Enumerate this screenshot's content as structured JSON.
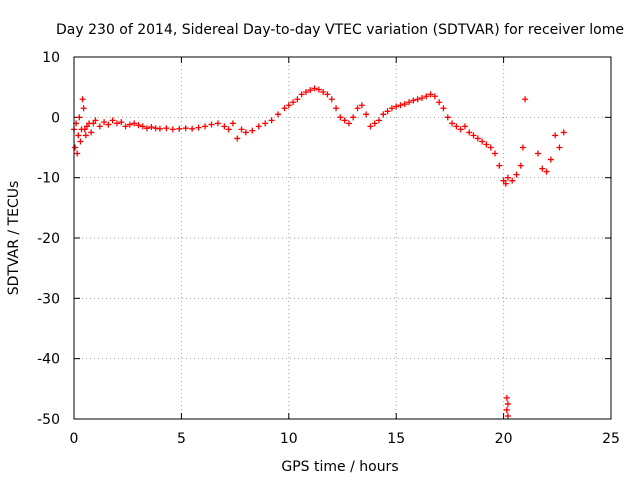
{
  "chart_data": {
    "type": "scatter",
    "title": "Day 230 of 2014, Sidereal Day-to-day VTEC variation (SDTVAR) for receiver lome",
    "xlabel": "GPS time / hours",
    "ylabel": "SDTVAR / TECUs",
    "xlim": [
      0,
      25
    ],
    "ylim": [
      -50,
      10
    ],
    "xticks": [
      0,
      5,
      10,
      15,
      20,
      25
    ],
    "yticks": [
      10,
      0,
      -10,
      -20,
      -30,
      -40,
      -50
    ],
    "grid": true,
    "marker": "+",
    "series": [
      {
        "name": "SDTVAR",
        "color": "#ff0000",
        "x": [
          0.0,
          0.05,
          0.1,
          0.15,
          0.2,
          0.25,
          0.3,
          0.35,
          0.4,
          0.45,
          0.5,
          0.55,
          0.6,
          0.7,
          0.8,
          0.9,
          1.0,
          1.2,
          1.4,
          1.6,
          1.8,
          2.0,
          2.2,
          2.4,
          2.6,
          2.8,
          3.0,
          3.2,
          3.4,
          3.6,
          3.8,
          4.0,
          4.3,
          4.6,
          4.9,
          5.2,
          5.5,
          5.8,
          6.1,
          6.4,
          6.7,
          7.0,
          7.2,
          7.4,
          7.6,
          7.8,
          8.0,
          8.3,
          8.6,
          8.9,
          9.2,
          9.5,
          9.8,
          10.0,
          10.2,
          10.4,
          10.6,
          10.8,
          11.0,
          11.2,
          11.4,
          11.6,
          11.8,
          12.0,
          12.2,
          12.4,
          12.6,
          12.8,
          13.0,
          13.2,
          13.4,
          13.6,
          13.8,
          14.0,
          14.2,
          14.4,
          14.6,
          14.8,
          15.0,
          15.2,
          15.4,
          15.6,
          15.8,
          16.0,
          16.2,
          16.4,
          16.6,
          16.8,
          17.0,
          17.2,
          17.4,
          17.6,
          17.8,
          18.0,
          18.2,
          18.4,
          18.6,
          18.8,
          19.0,
          19.2,
          19.4,
          19.6,
          19.8,
          20.0,
          20.1,
          20.2,
          20.4,
          20.6,
          20.8,
          20.9,
          21.0,
          21.6,
          21.8,
          22.0,
          22.2,
          22.4,
          22.6,
          22.8,
          20.15,
          20.15,
          20.2,
          20.2
        ],
        "y": [
          -2.0,
          -5.0,
          -1.0,
          -6.0,
          -3.0,
          0.0,
          -4.0,
          -2.0,
          3.0,
          1.5,
          -2.0,
          -3.0,
          -1.5,
          -1.0,
          -2.5,
          -1.0,
          -0.5,
          -1.5,
          -0.8,
          -1.2,
          -0.5,
          -1.0,
          -0.8,
          -1.5,
          -1.2,
          -1.0,
          -1.3,
          -1.5,
          -1.8,
          -1.6,
          -1.8,
          -1.9,
          -1.8,
          -2.0,
          -1.9,
          -1.8,
          -1.9,
          -1.7,
          -1.5,
          -1.2,
          -1.0,
          -1.5,
          -2.0,
          -1.0,
          -3.5,
          -2.0,
          -2.5,
          -2.2,
          -1.5,
          -1.0,
          -0.5,
          0.5,
          1.5,
          2.0,
          2.5,
          3.0,
          3.8,
          4.2,
          4.5,
          4.8,
          4.6,
          4.2,
          3.8,
          3.0,
          1.5,
          0.0,
          -0.5,
          -1.0,
          0.0,
          1.5,
          2.0,
          0.5,
          -1.5,
          -1.0,
          -0.5,
          0.5,
          1.0,
          1.5,
          1.8,
          2.0,
          2.2,
          2.5,
          2.8,
          3.0,
          3.2,
          3.5,
          3.8,
          3.5,
          2.5,
          1.5,
          0.0,
          -1.0,
          -1.5,
          -2.0,
          -1.5,
          -2.5,
          -3.0,
          -3.5,
          -4.0,
          -4.5,
          -5.0,
          -6.0,
          -8.0,
          -10.5,
          -11.0,
          -10.0,
          -10.5,
          -9.5,
          -8.0,
          -5.0,
          3.0,
          -6.0,
          -8.5,
          -9.0,
          -7.0,
          -3.0,
          -5.0,
          -2.5,
          -46.5,
          -48.5,
          -49.5,
          -47.5
        ]
      }
    ]
  }
}
